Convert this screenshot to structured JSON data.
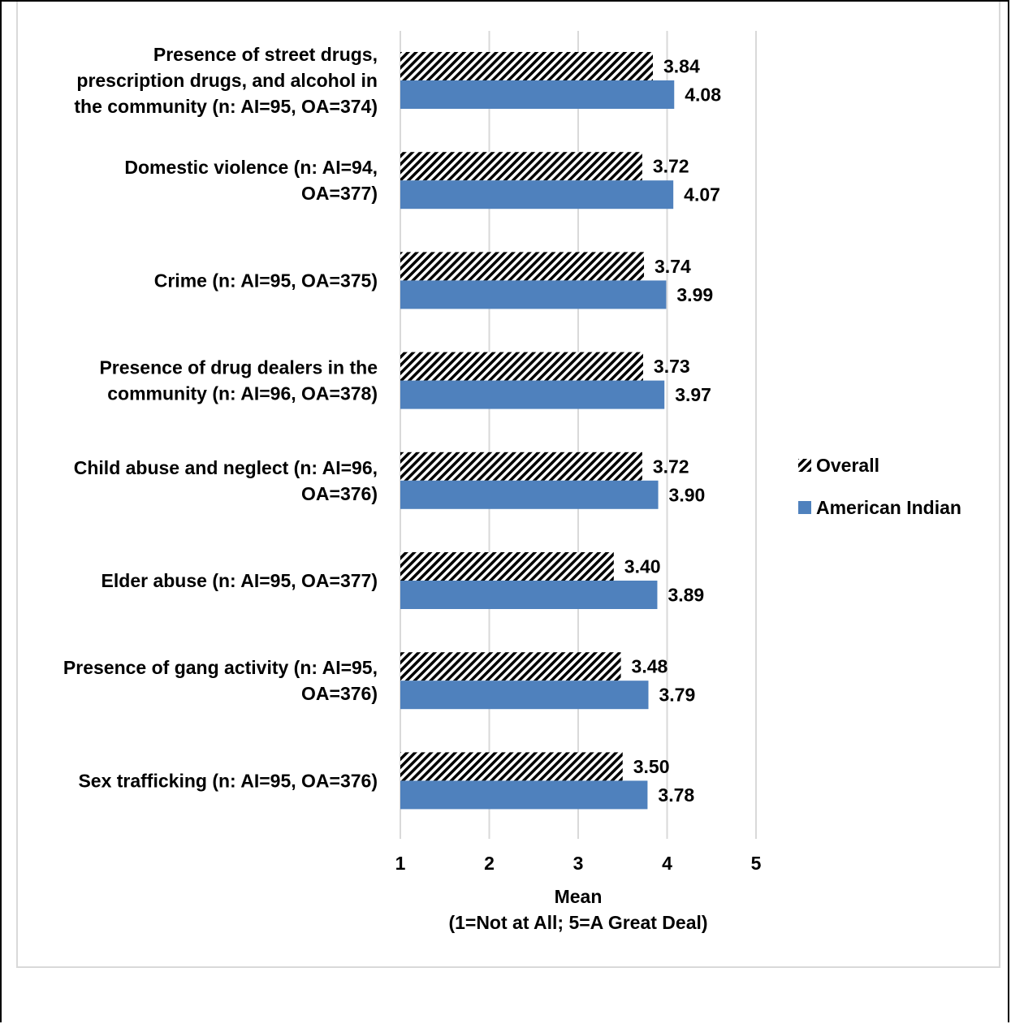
{
  "chart_data": {
    "type": "bar",
    "orientation": "horizontal",
    "categories": [
      "Presence of street drugs, prescription drugs, and alcohol in the community (n: AI=95, OA=374)",
      "Domestic violence (n: AI=94, OA=377)",
      "Crime (n: AI=95, OA=375)",
      "Presence of drug dealers in the community (n: AI=96, OA=378)",
      "Child abuse and neglect (n: AI=96, OA=376)",
      "Elder abuse (n: AI=95, OA=377)",
      "Presence of gang activity (n: AI=95, OA=376)",
      "Sex trafficking (n: AI=95, OA=376)"
    ],
    "category_lines": [
      [
        "Presence of street drugs,",
        "prescription drugs, and alcohol in",
        "the community (n: AI=95, OA=374)"
      ],
      [
        "Domestic violence (n: AI=94,",
        "OA=377)"
      ],
      [
        "Crime (n: AI=95, OA=375)"
      ],
      [
        "Presence of drug dealers in the",
        "community (n: AI=96, OA=378)"
      ],
      [
        "Child abuse and neglect (n: AI=96,",
        "OA=376)"
      ],
      [
        "Elder abuse (n: AI=95, OA=377)"
      ],
      [
        "Presence of gang activity (n: AI=95,",
        "OA=376)"
      ],
      [
        "Sex trafficking (n: AI=95, OA=376)"
      ]
    ],
    "series": [
      {
        "name": "Overall",
        "values": [
          3.84,
          3.72,
          3.74,
          3.73,
          3.72,
          3.4,
          3.48,
          3.5
        ],
        "labels": [
          "3.84",
          "3.72",
          "3.74",
          "3.73",
          "3.72",
          "3.40",
          "3.48",
          "3.50"
        ],
        "pattern": "diagonal-hatch",
        "color": "#000000"
      },
      {
        "name": "American Indian",
        "values": [
          4.08,
          4.07,
          3.99,
          3.97,
          3.9,
          3.89,
          3.79,
          3.78
        ],
        "labels": [
          "4.08",
          "4.07",
          "3.99",
          "3.97",
          "3.90",
          "3.89",
          "3.79",
          "3.78"
        ],
        "color": "#4f81bd"
      }
    ],
    "xlim": [
      1,
      5
    ],
    "xticks": [
      "1",
      "2",
      "3",
      "4",
      "5"
    ],
    "xlabel_lines": [
      "Mean",
      "(1=Not at All; 5=A Great Deal)"
    ],
    "grid": true,
    "legend_position": "right",
    "legend_order": [
      "Overall",
      "American Indian"
    ]
  }
}
